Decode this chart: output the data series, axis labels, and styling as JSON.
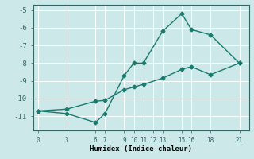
{
  "xlabel": "Humidex (Indice chaleur)",
  "line1_x": [
    0,
    3,
    6,
    7,
    9,
    10,
    11,
    13,
    15,
    16,
    18,
    21
  ],
  "line1_y": [
    -10.7,
    -10.85,
    -11.35,
    -10.85,
    -8.7,
    -8.0,
    -8.0,
    -6.2,
    -5.2,
    -6.1,
    -6.4,
    -8.0
  ],
  "line2_x": [
    0,
    3,
    6,
    7,
    9,
    10,
    11,
    13,
    15,
    16,
    18,
    21
  ],
  "line2_y": [
    -10.7,
    -10.6,
    -10.15,
    -10.1,
    -9.5,
    -9.35,
    -9.2,
    -8.85,
    -8.35,
    -8.2,
    -8.65,
    -8.0
  ],
  "line_color": "#1a7a6e",
  "bg_color": "#cce8e8",
  "grid_color": "#ffffff",
  "xlim": [
    -0.5,
    22
  ],
  "ylim": [
    -11.8,
    -4.7
  ],
  "xticks": [
    0,
    3,
    6,
    7,
    9,
    10,
    11,
    12,
    13,
    15,
    16,
    18,
    21
  ],
  "yticks": [
    -5,
    -6,
    -7,
    -8,
    -9,
    -10,
    -11
  ],
  "marker": "D",
  "marker_size": 2.5,
  "line_width": 1.0
}
